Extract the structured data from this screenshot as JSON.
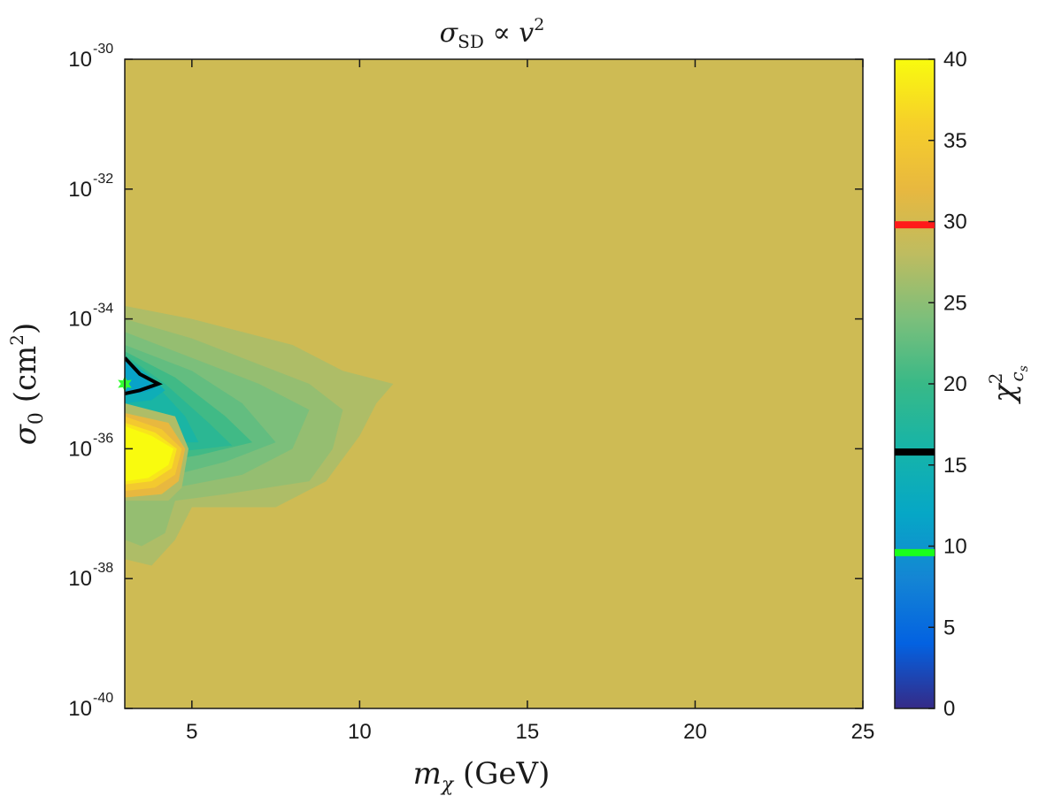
{
  "chart_data": {
    "type": "heatmap",
    "title": "σ_SD ∝ v²",
    "title_parts": {
      "main": "σ",
      "sub": "SD",
      "rest": " ∝ v",
      "sup": "2"
    },
    "xlabel": "m_χ (GeV)",
    "xlabel_parts": {
      "main": "m",
      "sub": "χ",
      "rest": " (GeV)"
    },
    "ylabel": "σ_0 (cm²)",
    "ylabel_parts": {
      "main": "σ",
      "sub": "0",
      "rest": " (cm",
      "sup": "2",
      "end": ")"
    },
    "colorbar_label": "χ²_cs",
    "colorbar_label_parts": {
      "main": "χ",
      "sup": "2",
      "sub": "c",
      "subsub": "s"
    },
    "xlim": [
      3,
      25
    ],
    "x_ticks": [
      5,
      10,
      15,
      20,
      25
    ],
    "y_scale": "log",
    "ylim": [
      1e-40,
      1e-30
    ],
    "y_ticks": [
      {
        "base": "10",
        "exp": "-30",
        "value": -30
      },
      {
        "base": "10",
        "exp": "-32",
        "value": -32
      },
      {
        "base": "10",
        "exp": "-34",
        "value": -34
      },
      {
        "base": "10",
        "exp": "-36",
        "value": -36
      },
      {
        "base": "10",
        "exp": "-38",
        "value": -38
      },
      {
        "base": "10",
        "exp": "-40",
        "value": -40
      }
    ],
    "colorbar_range": [
      0,
      40
    ],
    "colorbar_ticks": [
      0,
      5,
      10,
      15,
      20,
      25,
      30,
      35,
      40
    ],
    "colorbar_markers": [
      {
        "value": 29.8,
        "color": "#ff1a1a"
      },
      {
        "value": 15.8,
        "color": "#000000"
      },
      {
        "value": 9.6,
        "color": "#1aff1a"
      }
    ],
    "background_value": 29.5,
    "best_fit_point": {
      "x": 3.0,
      "log_y": -35.0,
      "color": "#33ff33"
    },
    "regions": [
      {
        "value": 27,
        "points": [
          [
            3,
            -33.8
          ],
          [
            4,
            -33.9
          ],
          [
            5,
            -34.0
          ],
          [
            6.5,
            -34.2
          ],
          [
            8,
            -34.4
          ],
          [
            9.5,
            -34.8
          ],
          [
            11,
            -35.0
          ],
          [
            10.5,
            -35.3
          ],
          [
            10,
            -35.8
          ],
          [
            9,
            -36.5
          ],
          [
            7.5,
            -36.9
          ],
          [
            5,
            -36.9
          ],
          [
            4.5,
            -37.4
          ],
          [
            3.8,
            -37.8
          ],
          [
            3,
            -37.7
          ]
        ]
      },
      {
        "value": 25.5,
        "points": [
          [
            3,
            -34.0
          ],
          [
            5,
            -34.3
          ],
          [
            7,
            -34.7
          ],
          [
            8.5,
            -35.0
          ],
          [
            9.5,
            -35.4
          ],
          [
            9.2,
            -36.0
          ],
          [
            8.5,
            -36.5
          ],
          [
            6,
            -36.7
          ],
          [
            4.5,
            -36.8
          ],
          [
            4.2,
            -37.3
          ],
          [
            3.5,
            -37.5
          ],
          [
            3,
            -37.4
          ]
        ]
      },
      {
        "value": 24,
        "points": [
          [
            3,
            -34.2
          ],
          [
            5,
            -34.6
          ],
          [
            7,
            -35.0
          ],
          [
            8.5,
            -35.4
          ],
          [
            8,
            -36.0
          ],
          [
            6.5,
            -36.4
          ],
          [
            4.5,
            -36.6
          ],
          [
            3,
            -36.8
          ]
        ]
      },
      {
        "value": 22.5,
        "points": [
          [
            3,
            -34.4
          ],
          [
            5,
            -34.8
          ],
          [
            6.5,
            -35.3
          ],
          [
            7.5,
            -35.9
          ],
          [
            6,
            -36.2
          ],
          [
            4.5,
            -36.4
          ],
          [
            3,
            -36.5
          ]
        ]
      },
      {
        "value": 20.5,
        "points": [
          [
            3,
            -34.5
          ],
          [
            4.5,
            -34.9
          ],
          [
            6,
            -35.5
          ],
          [
            6.8,
            -35.9
          ],
          [
            5.2,
            -36.1
          ],
          [
            4,
            -36.2
          ],
          [
            3,
            -36.2
          ]
        ]
      },
      {
        "value": 18.5,
        "points": [
          [
            3,
            -34.55
          ],
          [
            4.2,
            -35.0
          ],
          [
            5.5,
            -35.6
          ],
          [
            6.2,
            -35.95
          ],
          [
            4.5,
            -36.05
          ],
          [
            3,
            -36.0
          ]
        ]
      },
      {
        "value": 16.5,
        "points": [
          [
            3,
            -34.6
          ],
          [
            4,
            -35.05
          ],
          [
            4.8,
            -35.5
          ],
          [
            5.2,
            -35.9
          ],
          [
            4,
            -35.9
          ],
          [
            3,
            -35.8
          ]
        ]
      },
      {
        "value": 14,
        "points": [
          [
            3,
            -34.6
          ],
          [
            3.8,
            -34.9
          ],
          [
            4.2,
            -35.1
          ],
          [
            3.8,
            -35.25
          ],
          [
            3,
            -35.3
          ]
        ]
      },
      {
        "value": 11.5,
        "points": [
          [
            3,
            -34.65
          ],
          [
            3.6,
            -34.9
          ],
          [
            3.9,
            -35.08
          ],
          [
            3.4,
            -35.15
          ],
          [
            3,
            -35.15
          ]
        ]
      },
      {
        "value": 27,
        "points": [
          [
            3,
            -35.3
          ],
          [
            4.5,
            -35.5
          ],
          [
            4.9,
            -36.0
          ],
          [
            4.7,
            -36.6
          ],
          [
            4.3,
            -36.8
          ],
          [
            3,
            -36.8
          ]
        ]
      },
      {
        "value": 32,
        "points": [
          [
            3,
            -35.45
          ],
          [
            4.3,
            -35.6
          ],
          [
            4.8,
            -36.0
          ],
          [
            4.6,
            -36.5
          ],
          [
            4.1,
            -36.7
          ],
          [
            3,
            -36.75
          ]
        ]
      },
      {
        "value": 35,
        "points": [
          [
            3,
            -35.5
          ],
          [
            4.1,
            -35.7
          ],
          [
            4.7,
            -36.0
          ],
          [
            4.5,
            -36.4
          ],
          [
            3.9,
            -36.6
          ],
          [
            3,
            -36.65
          ]
        ]
      },
      {
        "value": 38,
        "points": [
          [
            3,
            -35.6
          ],
          [
            3.9,
            -35.75
          ],
          [
            4.55,
            -36.0
          ],
          [
            4.4,
            -36.3
          ],
          [
            3.8,
            -36.5
          ],
          [
            3,
            -36.55
          ]
        ]
      },
      {
        "value": 40,
        "points": [
          [
            3,
            -35.65
          ],
          [
            3.8,
            -35.8
          ],
          [
            4.45,
            -36.0
          ],
          [
            4.3,
            -36.25
          ],
          [
            3.7,
            -36.45
          ],
          [
            3,
            -36.5
          ]
        ]
      }
    ],
    "contour_line": {
      "color": "#000000",
      "points": [
        [
          3,
          -34.6
        ],
        [
          3.45,
          -34.85
        ],
        [
          4,
          -35.0
        ],
        [
          3.45,
          -35.1
        ],
        [
          3,
          -35.15
        ]
      ]
    }
  }
}
